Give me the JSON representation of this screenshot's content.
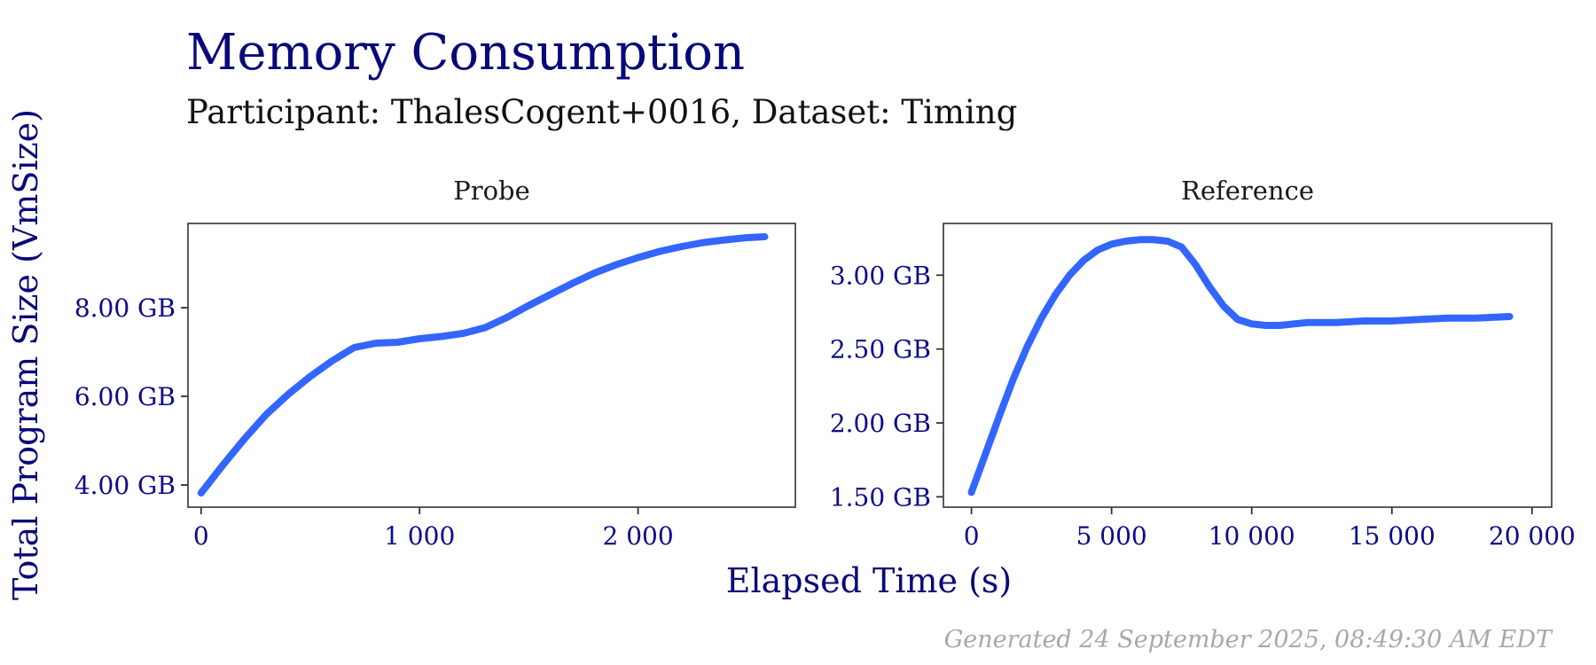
{
  "chart_data": {
    "type": "line",
    "title": "Memory Consumption",
    "subtitle": "Participant: ThalesCogent+0016, Dataset: Timing",
    "xlabel": "Elapsed Time (s)",
    "ylabel": "Total Program Size (VmSize)",
    "caption": "Generated 24 September 2025, 08:49:30 AM EDT",
    "grid": true,
    "colors": {
      "series": "#3366ff",
      "title": "#08087a",
      "ticks": "#0b0b8a",
      "caption": "#a8a8a8"
    },
    "panels": [
      {
        "name": "Probe",
        "xlim": [
          -60,
          2720
        ],
        "ylim": [
          3.5,
          9.9
        ],
        "x_ticks": [
          0,
          1000,
          2000
        ],
        "x_tick_labels": [
          "0",
          "1 000",
          "2 000"
        ],
        "x_minor": [
          500,
          1500,
          2500
        ],
        "y_ticks": [
          4,
          6,
          8
        ],
        "y_tick_labels": [
          "4.00 GB",
          "6.00 GB",
          "8.00 GB"
        ],
        "y_minor": [
          5,
          7,
          9
        ],
        "x": [
          0,
          100,
          200,
          300,
          400,
          500,
          600,
          700,
          800,
          900,
          1000,
          1100,
          1200,
          1300,
          1400,
          1500,
          1600,
          1700,
          1800,
          1900,
          2000,
          2100,
          2200,
          2300,
          2400,
          2500,
          2580
        ],
        "y": [
          3.82,
          4.45,
          5.05,
          5.6,
          6.05,
          6.45,
          6.8,
          7.1,
          7.2,
          7.22,
          7.3,
          7.35,
          7.42,
          7.55,
          7.78,
          8.05,
          8.3,
          8.55,
          8.78,
          8.97,
          9.13,
          9.27,
          9.38,
          9.47,
          9.53,
          9.58,
          9.6
        ]
      },
      {
        "name": "Reference",
        "xlim": [
          -1000,
          20700
        ],
        "ylim": [
          1.43,
          3.35
        ],
        "x_ticks": [
          0,
          5000,
          10000,
          15000,
          20000
        ],
        "x_tick_labels": [
          "0",
          "5 000",
          "10 000",
          "15 000",
          "20 000"
        ],
        "x_minor": [
          2500,
          7500,
          12500,
          17500
        ],
        "y_ticks": [
          1.5,
          2.0,
          2.5,
          3.0
        ],
        "y_tick_labels": [
          "1.50 GB",
          "2.00 GB",
          "2.50 GB",
          "3.00 GB"
        ],
        "y_minor": [
          1.75,
          2.25,
          2.75,
          3.25
        ],
        "x": [
          0,
          500,
          1000,
          1500,
          2000,
          2500,
          3000,
          3500,
          4000,
          4500,
          5000,
          5500,
          6000,
          6500,
          7000,
          7500,
          8000,
          8500,
          9000,
          9500,
          10000,
          10500,
          11000,
          11500,
          12000,
          13000,
          14000,
          15000,
          16000,
          17000,
          18000,
          19200
        ],
        "y": [
          1.53,
          1.79,
          2.05,
          2.3,
          2.52,
          2.71,
          2.87,
          3.0,
          3.1,
          3.17,
          3.21,
          3.23,
          3.24,
          3.24,
          3.23,
          3.19,
          3.07,
          2.92,
          2.79,
          2.7,
          2.67,
          2.66,
          2.66,
          2.67,
          2.68,
          2.68,
          2.69,
          2.69,
          2.7,
          2.71,
          2.71,
          2.72
        ]
      }
    ]
  }
}
